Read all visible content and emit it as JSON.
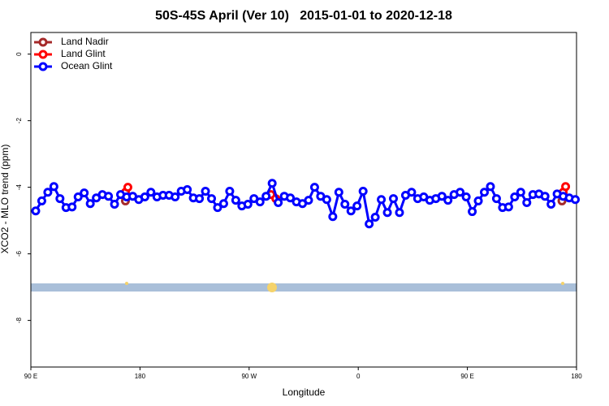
{
  "chart_data": {
    "type": "line",
    "title": "50S-45S April (Ver 10)   2015-01-01 to 2020-12-18",
    "x_label": "Longitude",
    "y_label": "XCO2 - MLO trend (ppm)",
    "xlim": [
      90,
      540
    ],
    "ylim": [
      -9.4,
      0.65
    ],
    "xticks": [
      {
        "value": 90,
        "label": "90 E"
      },
      {
        "value": 180,
        "label": "180"
      },
      {
        "value": 270,
        "label": "90 W"
      },
      {
        "value": 360,
        "label": "0"
      },
      {
        "value": 450,
        "label": "90 E"
      },
      {
        "value": 540,
        "label": "180"
      }
    ],
    "yticks": [
      0,
      -2,
      -4,
      -6,
      -8
    ],
    "legend": "top-left",
    "series": [
      {
        "name": "Land Nadir",
        "color": "#a52a2a",
        "x": [
          168,
          528
        ],
        "values": [
          -4.41,
          -4.41
        ]
      },
      {
        "name": "Land Glint",
        "color": "#ff0000",
        "x": [
          168,
          170,
          288,
          292,
          529,
          531
        ],
        "values": [
          -4.15,
          -4.0,
          -4.22,
          -4.34,
          -4.15,
          -3.98
        ]
      },
      {
        "name": "Ocean Glint",
        "color": "#0000ff",
        "x": [
          94,
          99,
          104,
          109,
          114,
          119,
          124,
          129,
          134,
          139,
          144,
          149,
          154,
          159,
          164,
          169,
          174,
          179,
          184,
          189,
          194,
          199,
          204,
          209,
          214,
          219,
          224,
          229,
          234,
          239,
          244,
          249,
          254,
          259,
          264,
          269,
          274,
          279,
          284,
          289,
          294,
          299,
          304,
          309,
          314,
          319,
          324,
          329,
          334,
          339,
          344,
          349,
          354,
          359,
          364,
          369,
          374,
          379,
          384,
          389,
          394,
          399,
          404,
          409,
          414,
          419,
          424,
          429,
          434,
          439,
          444,
          449,
          454,
          459,
          464,
          469,
          474,
          479,
          484,
          489,
          494,
          499,
          504,
          509,
          514,
          519,
          524,
          529,
          534,
          539
        ],
        "values": [
          -4.71,
          -4.41,
          -4.15,
          -3.98,
          -4.34,
          -4.61,
          -4.59,
          -4.29,
          -4.17,
          -4.49,
          -4.32,
          -4.22,
          -4.27,
          -4.51,
          -4.22,
          -4.29,
          -4.27,
          -4.37,
          -4.29,
          -4.15,
          -4.29,
          -4.24,
          -4.24,
          -4.29,
          -4.12,
          -4.07,
          -4.32,
          -4.34,
          -4.12,
          -4.34,
          -4.61,
          -4.49,
          -4.12,
          -4.39,
          -4.56,
          -4.51,
          -4.34,
          -4.44,
          -4.27,
          -3.88,
          -4.46,
          -4.27,
          -4.32,
          -4.44,
          -4.49,
          -4.39,
          -4.0,
          -4.27,
          -4.37,
          -4.88,
          -4.15,
          -4.51,
          -4.71,
          -4.56,
          -4.12,
          -5.1,
          -4.9,
          -4.37,
          -4.76,
          -4.34,
          -4.76,
          -4.24,
          -4.15,
          -4.34,
          -4.29,
          -4.39,
          -4.34,
          -4.27,
          -4.39,
          -4.22,
          -4.15,
          -4.29,
          -4.73,
          -4.41,
          -4.15,
          -3.98,
          -4.34,
          -4.61,
          -4.59,
          -4.29,
          -4.15,
          -4.46,
          -4.22,
          -4.2,
          -4.27,
          -4.51,
          -4.2,
          -4.27,
          -4.32,
          -4.37
        ]
      }
    ]
  }
}
